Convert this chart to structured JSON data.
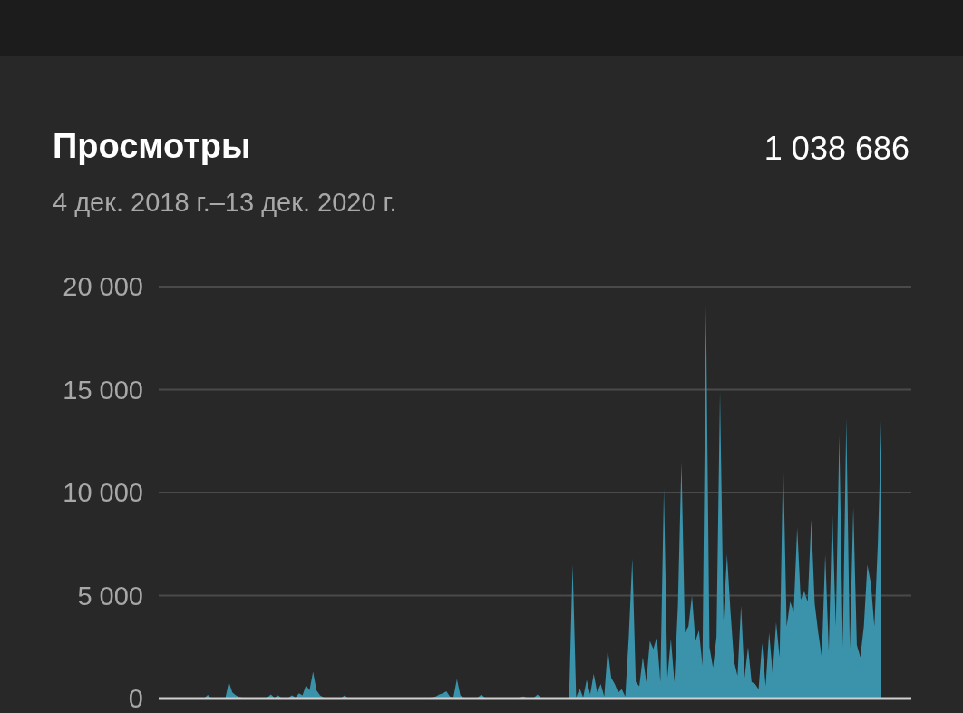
{
  "chart_data": {
    "type": "area",
    "title": "Просмотры",
    "subtitle": "4 дек. 2018 г.–13 дек. 2020 г.",
    "annotations": [
      "1 038 686"
    ],
    "categories": [
      null,
      null,
      null,
      null,
      null,
      null,
      null,
      null,
      null,
      null,
      null,
      null,
      null,
      null,
      null,
      null,
      null,
      null,
      null,
      null,
      null,
      null,
      null,
      null,
      null,
      null,
      null,
      null,
      null,
      null,
      null,
      null,
      null,
      null,
      null,
      null,
      null,
      null,
      null,
      null,
      null,
      null,
      null,
      null,
      null,
      null,
      null,
      null,
      null,
      null,
      null,
      null,
      null,
      null,
      null,
      null,
      null,
      null,
      null,
      null,
      null,
      null,
      null,
      null,
      null,
      null,
      null,
      null,
      null,
      null,
      null,
      null,
      null,
      null,
      null,
      null,
      null,
      null,
      null,
      null,
      null,
      null,
      null,
      null,
      null,
      null,
      null,
      null,
      null,
      null,
      null,
      null,
      null,
      null,
      null,
      null,
      null,
      null,
      null,
      null,
      null,
      null,
      null,
      null,
      null,
      null,
      null,
      null,
      null,
      null,
      null,
      null,
      null,
      null,
      null,
      null,
      null,
      null,
      null,
      null,
      null,
      null,
      null,
      null,
      null,
      null,
      null,
      null,
      null,
      null,
      null,
      null,
      null,
      null,
      null,
      null,
      null,
      null,
      null,
      null,
      null,
      null,
      null,
      null,
      null,
      null,
      null,
      null,
      null,
      null,
      null,
      null,
      null,
      null,
      null,
      null,
      null,
      null,
      null,
      null,
      null,
      null,
      null,
      null,
      null,
      null,
      null,
      null,
      null,
      null,
      null,
      null,
      null,
      null,
      null,
      null,
      null,
      null,
      null,
      null,
      null,
      null,
      null,
      null,
      null,
      null,
      null,
      null,
      null,
      null,
      null,
      null,
      null,
      null,
      null,
      null,
      null,
      null,
      null,
      null,
      null,
      null,
      null,
      null,
      null,
      null,
      null
    ],
    "series": [
      {
        "color": "#3a93ab",
        "values": [
          0,
          10,
          10,
          10,
          10,
          10,
          10,
          10,
          10,
          10,
          10,
          10,
          10,
          20,
          180,
          20,
          10,
          10,
          10,
          20,
          800,
          300,
          150,
          80,
          40,
          20,
          20,
          20,
          20,
          20,
          30,
          50,
          200,
          30,
          150,
          30,
          20,
          40,
          150,
          60,
          250,
          150,
          650,
          400,
          1300,
          400,
          150,
          60,
          30,
          20,
          20,
          30,
          20,
          150,
          20,
          20,
          20,
          10,
          10,
          20,
          20,
          10,
          10,
          20,
          10,
          20,
          20,
          10,
          10,
          20,
          20,
          10,
          20,
          20,
          30,
          20,
          20,
          40,
          60,
          100,
          200,
          250,
          350,
          100,
          50,
          950,
          150,
          40,
          20,
          20,
          30,
          50,
          200,
          30,
          20,
          20,
          10,
          20,
          20,
          20,
          10,
          20,
          30,
          50,
          100,
          30,
          20,
          40,
          200,
          30,
          20,
          10,
          10,
          10,
          10,
          0,
          0,
          50,
          6500,
          50,
          500,
          50,
          900,
          200,
          1200,
          300,
          700,
          100,
          2400,
          1000,
          700,
          300,
          450,
          100,
          3000,
          6800,
          800,
          600,
          2000,
          800,
          2800,
          2400,
          3000,
          800,
          10200,
          1000,
          2900,
          800,
          4500,
          11500,
          3200,
          3500,
          5000,
          2800,
          3300,
          1600,
          19100,
          2500,
          1500,
          3000,
          14900,
          3800,
          7000,
          4200,
          1800,
          1100,
          4500,
          1000,
          2500,
          800,
          700,
          450,
          2700,
          600,
          3200,
          1200,
          3700,
          2000,
          11700,
          3500,
          4700,
          4200,
          8300,
          4800,
          5200,
          4700,
          8700,
          4600,
          3200,
          2000,
          7000,
          2300,
          9200,
          3500,
          12800,
          2500,
          13600,
          2400,
          9300,
          2600,
          2000,
          3500,
          6500,
          5600,
          3500,
          7600,
          13500
        ]
      }
    ],
    "ylim": [
      0,
      20000
    ],
    "yticks": [
      {
        "value": 0,
        "label": "0"
      },
      {
        "value": 5000,
        "label": "5 000"
      },
      {
        "value": 10000,
        "label": "10 000"
      },
      {
        "value": 15000,
        "label": "15 000"
      },
      {
        "value": 20000,
        "label": "20 000"
      }
    ],
    "grid": "y"
  }
}
